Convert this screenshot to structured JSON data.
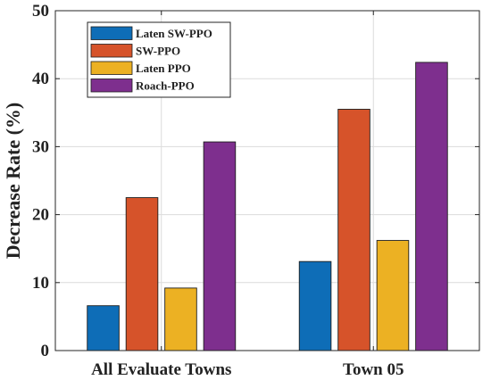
{
  "chart_data": {
    "type": "bar",
    "title": "",
    "xlabel": "",
    "ylabel": "Decrease Rate (%)",
    "ylim": [
      0,
      50
    ],
    "yticks": [
      0,
      10,
      20,
      30,
      40,
      50
    ],
    "grid": true,
    "legend_position": "top-left",
    "categories": [
      "All Evaluate Towns",
      "Town 05"
    ],
    "series": [
      {
        "name": "Laten SW-PPO",
        "color": "#0e6db7",
        "values": [
          6.6,
          13.1
        ]
      },
      {
        "name": "SW-PPO",
        "color": "#d6532a",
        "values": [
          22.5,
          35.5
        ]
      },
      {
        "name": "Laten PPO",
        "color": "#ecb123",
        "values": [
          9.2,
          16.2
        ]
      },
      {
        "name": "Roach-PPO",
        "color": "#7e2f8e",
        "values": [
          30.7,
          42.4
        ]
      }
    ]
  }
}
